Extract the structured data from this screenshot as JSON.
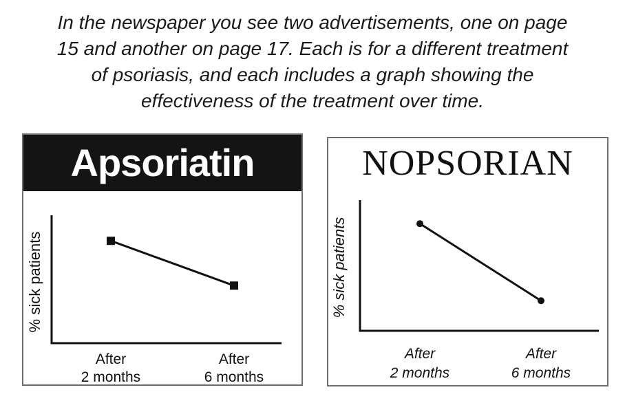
{
  "intro": {
    "lines": [
      "In the newspaper you see two advertisements, one on page",
      "15 and another on page 17. Each is for a different treatment",
      "of psoriasis, and each includes a graph showing the",
      "effectiveness of the treatment over time."
    ]
  },
  "chart_data": [
    {
      "type": "line",
      "title": "Apsoriatin",
      "xlabel": "",
      "ylabel": "% sick patients",
      "categories": [
        "After 2 months",
        "After 6 months"
      ],
      "category_lines": [
        [
          "After",
          "2 months"
        ],
        [
          "After",
          "6 months"
        ]
      ],
      "values": [
        0.8,
        0.45
      ],
      "ylim": [
        0,
        1
      ],
      "marker": "square",
      "grid": false,
      "style": {
        "banner": "dark",
        "tick_font": "normal",
        "ylabel_font": "normal"
      }
    },
    {
      "type": "line",
      "title": "NOPSORIAN",
      "xlabel": "",
      "ylabel": "% sick patients",
      "categories": [
        "After 2 months",
        "After 6 months"
      ],
      "category_lines": [
        [
          "After",
          "2 months"
        ],
        [
          "After",
          "6 months"
        ]
      ],
      "values": [
        0.82,
        0.23
      ],
      "ylim": [
        0,
        1
      ],
      "marker": "circle",
      "grid": false,
      "style": {
        "banner": "light",
        "tick_font": "italic",
        "ylabel_font": "italic"
      }
    }
  ]
}
